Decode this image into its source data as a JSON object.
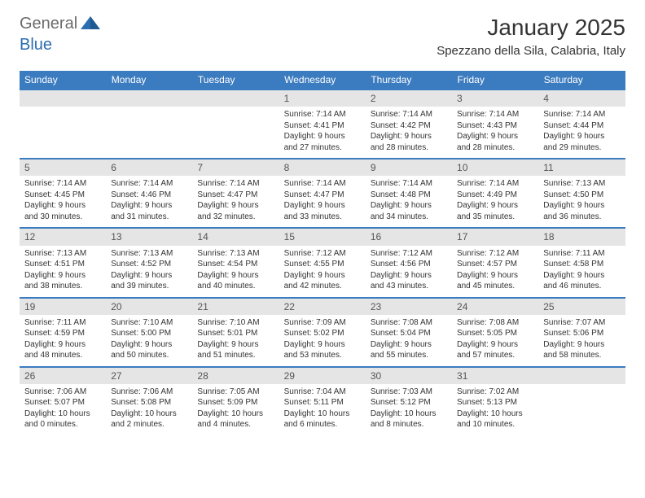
{
  "logo": {
    "text1": "General",
    "text2": "Blue",
    "color1": "#6b6b6b",
    "color2": "#2a6db0"
  },
  "title": "January 2025",
  "location": "Spezzano della Sila, Calabria, Italy",
  "style": {
    "header_bg": "#3b7bbf",
    "header_text": "#ffffff",
    "daynum_bg": "#e5e5e5",
    "daynum_border": "#3b7bbf",
    "body_bg": "#ffffff",
    "text_color": "#333333",
    "font_family": "Arial",
    "title_fontsize": 28,
    "location_fontsize": 15,
    "header_fontsize": 12,
    "cell_fontsize": 10
  },
  "weekdays": [
    "Sunday",
    "Monday",
    "Tuesday",
    "Wednesday",
    "Thursday",
    "Friday",
    "Saturday"
  ],
  "weeks": [
    [
      null,
      null,
      null,
      {
        "n": "1",
        "sr": "Sunrise: 7:14 AM",
        "ss": "Sunset: 4:41 PM",
        "d1": "Daylight: 9 hours",
        "d2": "and 27 minutes."
      },
      {
        "n": "2",
        "sr": "Sunrise: 7:14 AM",
        "ss": "Sunset: 4:42 PM",
        "d1": "Daylight: 9 hours",
        "d2": "and 28 minutes."
      },
      {
        "n": "3",
        "sr": "Sunrise: 7:14 AM",
        "ss": "Sunset: 4:43 PM",
        "d1": "Daylight: 9 hours",
        "d2": "and 28 minutes."
      },
      {
        "n": "4",
        "sr": "Sunrise: 7:14 AM",
        "ss": "Sunset: 4:44 PM",
        "d1": "Daylight: 9 hours",
        "d2": "and 29 minutes."
      }
    ],
    [
      {
        "n": "5",
        "sr": "Sunrise: 7:14 AM",
        "ss": "Sunset: 4:45 PM",
        "d1": "Daylight: 9 hours",
        "d2": "and 30 minutes."
      },
      {
        "n": "6",
        "sr": "Sunrise: 7:14 AM",
        "ss": "Sunset: 4:46 PM",
        "d1": "Daylight: 9 hours",
        "d2": "and 31 minutes."
      },
      {
        "n": "7",
        "sr": "Sunrise: 7:14 AM",
        "ss": "Sunset: 4:47 PM",
        "d1": "Daylight: 9 hours",
        "d2": "and 32 minutes."
      },
      {
        "n": "8",
        "sr": "Sunrise: 7:14 AM",
        "ss": "Sunset: 4:47 PM",
        "d1": "Daylight: 9 hours",
        "d2": "and 33 minutes."
      },
      {
        "n": "9",
        "sr": "Sunrise: 7:14 AM",
        "ss": "Sunset: 4:48 PM",
        "d1": "Daylight: 9 hours",
        "d2": "and 34 minutes."
      },
      {
        "n": "10",
        "sr": "Sunrise: 7:14 AM",
        "ss": "Sunset: 4:49 PM",
        "d1": "Daylight: 9 hours",
        "d2": "and 35 minutes."
      },
      {
        "n": "11",
        "sr": "Sunrise: 7:13 AM",
        "ss": "Sunset: 4:50 PM",
        "d1": "Daylight: 9 hours",
        "d2": "and 36 minutes."
      }
    ],
    [
      {
        "n": "12",
        "sr": "Sunrise: 7:13 AM",
        "ss": "Sunset: 4:51 PM",
        "d1": "Daylight: 9 hours",
        "d2": "and 38 minutes."
      },
      {
        "n": "13",
        "sr": "Sunrise: 7:13 AM",
        "ss": "Sunset: 4:52 PM",
        "d1": "Daylight: 9 hours",
        "d2": "and 39 minutes."
      },
      {
        "n": "14",
        "sr": "Sunrise: 7:13 AM",
        "ss": "Sunset: 4:54 PM",
        "d1": "Daylight: 9 hours",
        "d2": "and 40 minutes."
      },
      {
        "n": "15",
        "sr": "Sunrise: 7:12 AM",
        "ss": "Sunset: 4:55 PM",
        "d1": "Daylight: 9 hours",
        "d2": "and 42 minutes."
      },
      {
        "n": "16",
        "sr": "Sunrise: 7:12 AM",
        "ss": "Sunset: 4:56 PM",
        "d1": "Daylight: 9 hours",
        "d2": "and 43 minutes."
      },
      {
        "n": "17",
        "sr": "Sunrise: 7:12 AM",
        "ss": "Sunset: 4:57 PM",
        "d1": "Daylight: 9 hours",
        "d2": "and 45 minutes."
      },
      {
        "n": "18",
        "sr": "Sunrise: 7:11 AM",
        "ss": "Sunset: 4:58 PM",
        "d1": "Daylight: 9 hours",
        "d2": "and 46 minutes."
      }
    ],
    [
      {
        "n": "19",
        "sr": "Sunrise: 7:11 AM",
        "ss": "Sunset: 4:59 PM",
        "d1": "Daylight: 9 hours",
        "d2": "and 48 minutes."
      },
      {
        "n": "20",
        "sr": "Sunrise: 7:10 AM",
        "ss": "Sunset: 5:00 PM",
        "d1": "Daylight: 9 hours",
        "d2": "and 50 minutes."
      },
      {
        "n": "21",
        "sr": "Sunrise: 7:10 AM",
        "ss": "Sunset: 5:01 PM",
        "d1": "Daylight: 9 hours",
        "d2": "and 51 minutes."
      },
      {
        "n": "22",
        "sr": "Sunrise: 7:09 AM",
        "ss": "Sunset: 5:02 PM",
        "d1": "Daylight: 9 hours",
        "d2": "and 53 minutes."
      },
      {
        "n": "23",
        "sr": "Sunrise: 7:08 AM",
        "ss": "Sunset: 5:04 PM",
        "d1": "Daylight: 9 hours",
        "d2": "and 55 minutes."
      },
      {
        "n": "24",
        "sr": "Sunrise: 7:08 AM",
        "ss": "Sunset: 5:05 PM",
        "d1": "Daylight: 9 hours",
        "d2": "and 57 minutes."
      },
      {
        "n": "25",
        "sr": "Sunrise: 7:07 AM",
        "ss": "Sunset: 5:06 PM",
        "d1": "Daylight: 9 hours",
        "d2": "and 58 minutes."
      }
    ],
    [
      {
        "n": "26",
        "sr": "Sunrise: 7:06 AM",
        "ss": "Sunset: 5:07 PM",
        "d1": "Daylight: 10 hours",
        "d2": "and 0 minutes."
      },
      {
        "n": "27",
        "sr": "Sunrise: 7:06 AM",
        "ss": "Sunset: 5:08 PM",
        "d1": "Daylight: 10 hours",
        "d2": "and 2 minutes."
      },
      {
        "n": "28",
        "sr": "Sunrise: 7:05 AM",
        "ss": "Sunset: 5:09 PM",
        "d1": "Daylight: 10 hours",
        "d2": "and 4 minutes."
      },
      {
        "n": "29",
        "sr": "Sunrise: 7:04 AM",
        "ss": "Sunset: 5:11 PM",
        "d1": "Daylight: 10 hours",
        "d2": "and 6 minutes."
      },
      {
        "n": "30",
        "sr": "Sunrise: 7:03 AM",
        "ss": "Sunset: 5:12 PM",
        "d1": "Daylight: 10 hours",
        "d2": "and 8 minutes."
      },
      {
        "n": "31",
        "sr": "Sunrise: 7:02 AM",
        "ss": "Sunset: 5:13 PM",
        "d1": "Daylight: 10 hours",
        "d2": "and 10 minutes."
      },
      null
    ]
  ]
}
